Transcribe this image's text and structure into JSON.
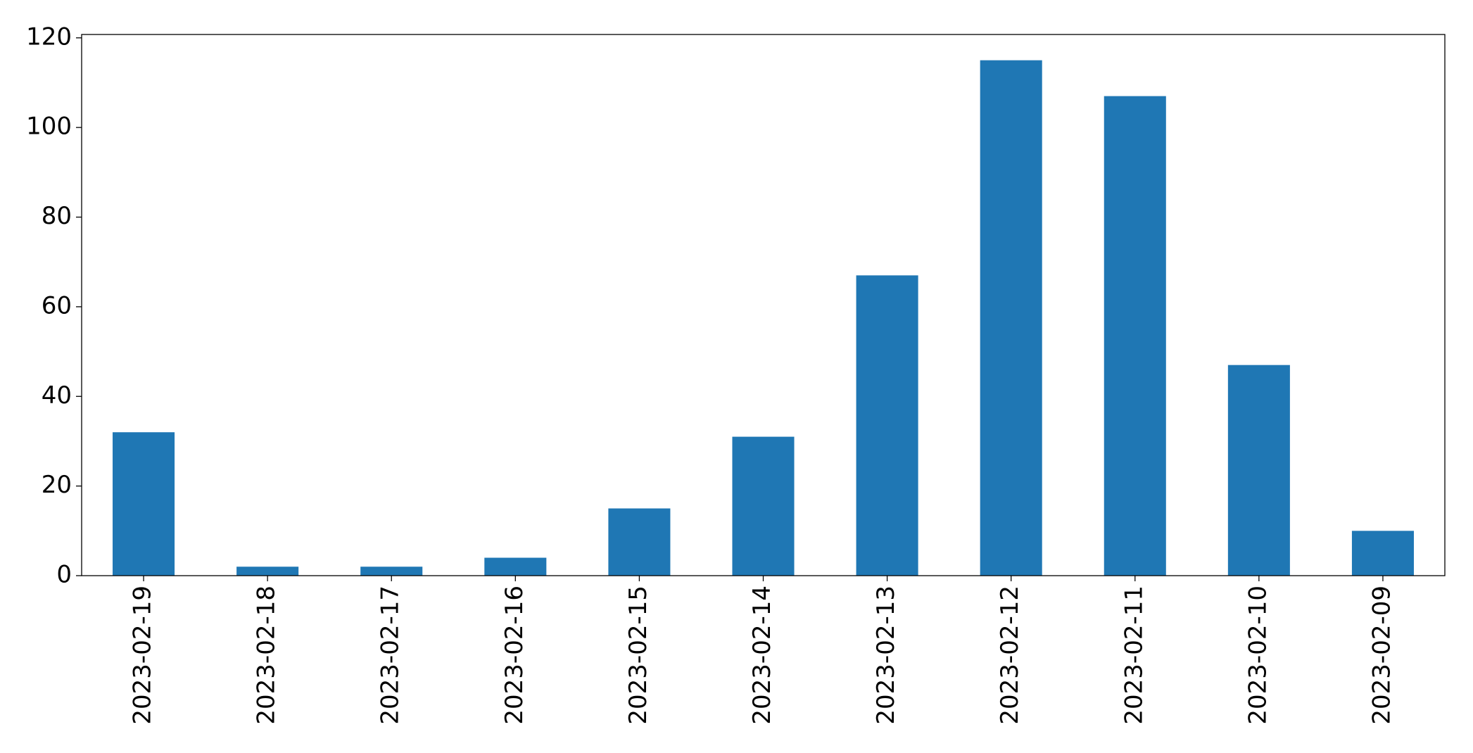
{
  "chart_data": {
    "type": "bar",
    "categories": [
      "2023-02-19",
      "2023-02-18",
      "2023-02-17",
      "2023-02-16",
      "2023-02-15",
      "2023-02-14",
      "2023-02-13",
      "2023-02-12",
      "2023-02-11",
      "2023-02-10",
      "2023-02-09"
    ],
    "values": [
      32,
      2,
      2,
      4,
      15,
      31,
      67,
      115,
      107,
      47,
      10
    ],
    "color": "#1f77b4",
    "ylim": [
      0,
      120.75
    ],
    "yticks": [
      0,
      20,
      40,
      60,
      80,
      100,
      120
    ],
    "grid": false
  }
}
